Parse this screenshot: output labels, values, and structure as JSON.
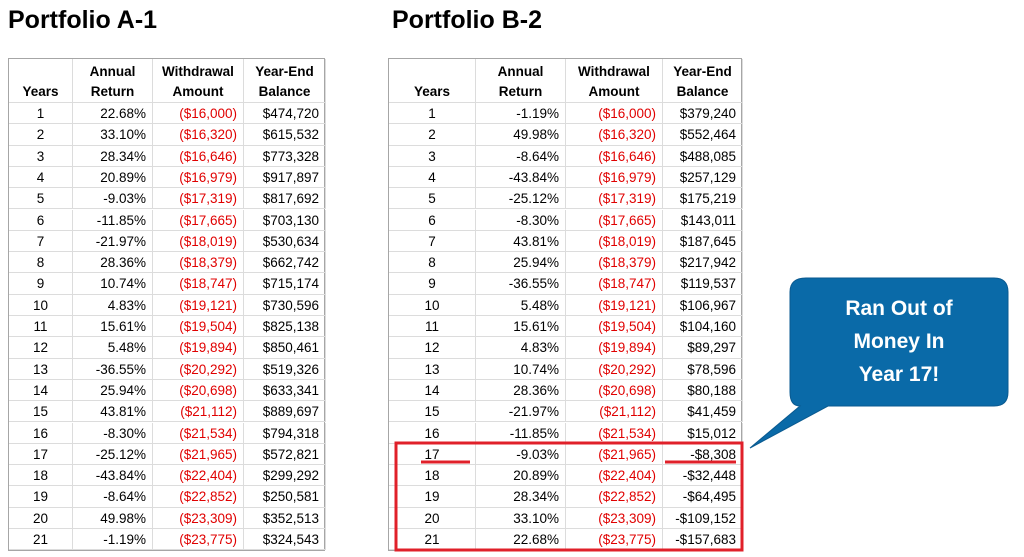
{
  "tables": [
    {
      "title": "Portfolio A-1",
      "headers": [
        [
          "Years"
        ],
        [
          "Annual",
          "Return"
        ],
        [
          "Withdrawal",
          "Amount"
        ],
        [
          "Year-End",
          "Balance"
        ]
      ],
      "rows": [
        [
          "1",
          "22.68%",
          "($16,000)",
          "$474,720"
        ],
        [
          "2",
          "33.10%",
          "($16,320)",
          "$615,532"
        ],
        [
          "3",
          "28.34%",
          "($16,646)",
          "$773,328"
        ],
        [
          "4",
          "20.89%",
          "($16,979)",
          "$917,897"
        ],
        [
          "5",
          "-9.03%",
          "($17,319)",
          "$817,692"
        ],
        [
          "6",
          "-11.85%",
          "($17,665)",
          "$703,130"
        ],
        [
          "7",
          "-21.97%",
          "($18,019)",
          "$530,634"
        ],
        [
          "8",
          "28.36%",
          "($18,379)",
          "$662,742"
        ],
        [
          "9",
          "10.74%",
          "($18,747)",
          "$715,174"
        ],
        [
          "10",
          "4.83%",
          "($19,121)",
          "$730,596"
        ],
        [
          "11",
          "15.61%",
          "($19,504)",
          "$825,138"
        ],
        [
          "12",
          "5.48%",
          "($19,894)",
          "$850,461"
        ],
        [
          "13",
          "-36.55%",
          "($20,292)",
          "$519,326"
        ],
        [
          "14",
          "25.94%",
          "($20,698)",
          "$633,341"
        ],
        [
          "15",
          "43.81%",
          "($21,112)",
          "$889,697"
        ],
        [
          "16",
          "-8.30%",
          "($21,534)",
          "$794,318"
        ],
        [
          "17",
          "-25.12%",
          "($21,965)",
          "$572,821"
        ],
        [
          "18",
          "-43.84%",
          "($22,404)",
          "$299,292"
        ],
        [
          "19",
          "-8.64%",
          "($22,852)",
          "$250,581"
        ],
        [
          "20",
          "49.98%",
          "($23,309)",
          "$352,513"
        ],
        [
          "21",
          "-1.19%",
          "($23,775)",
          "$324,543"
        ]
      ]
    },
    {
      "title": "Portfolio B-2",
      "headers": [
        [
          "Years"
        ],
        [
          "Annual",
          "Return"
        ],
        [
          "Withdrawal",
          "Amount"
        ],
        [
          "Year-End",
          "Balance"
        ]
      ],
      "rows": [
        [
          "1",
          "-1.19%",
          "($16,000)",
          "$379,240"
        ],
        [
          "2",
          "49.98%",
          "($16,320)",
          "$552,464"
        ],
        [
          "3",
          "-8.64%",
          "($16,646)",
          "$488,085"
        ],
        [
          "4",
          "-43.84%",
          "($16,979)",
          "$257,129"
        ],
        [
          "5",
          "-25.12%",
          "($17,319)",
          "$175,219"
        ],
        [
          "6",
          "-8.30%",
          "($17,665)",
          "$143,011"
        ],
        [
          "7",
          "43.81%",
          "($18,019)",
          "$187,645"
        ],
        [
          "8",
          "25.94%",
          "($18,379)",
          "$217,942"
        ],
        [
          "9",
          "-36.55%",
          "($18,747)",
          "$119,537"
        ],
        [
          "10",
          "5.48%",
          "($19,121)",
          "$106,967"
        ],
        [
          "11",
          "15.61%",
          "($19,504)",
          "$104,160"
        ],
        [
          "12",
          "4.83%",
          "($19,894)",
          "$89,297"
        ],
        [
          "13",
          "10.74%",
          "($20,292)",
          "$78,596"
        ],
        [
          "14",
          "28.36%",
          "($20,698)",
          "$80,188"
        ],
        [
          "15",
          "-21.97%",
          "($21,112)",
          "$41,459"
        ],
        [
          "16",
          "-11.85%",
          "($21,534)",
          "$15,012"
        ],
        [
          "17",
          "-9.03%",
          "($21,965)",
          "-$8,308"
        ],
        [
          "18",
          "20.89%",
          "($22,404)",
          "-$32,448"
        ],
        [
          "19",
          "28.34%",
          "($22,852)",
          "-$64,495"
        ],
        [
          "20",
          "33.10%",
          "($23,309)",
          "-$109,152"
        ],
        [
          "21",
          "22.68%",
          "($23,775)",
          "-$157,683"
        ]
      ]
    }
  ],
  "callout": {
    "lines": [
      "Ran Out of",
      "Money In",
      "Year 17!"
    ]
  }
}
